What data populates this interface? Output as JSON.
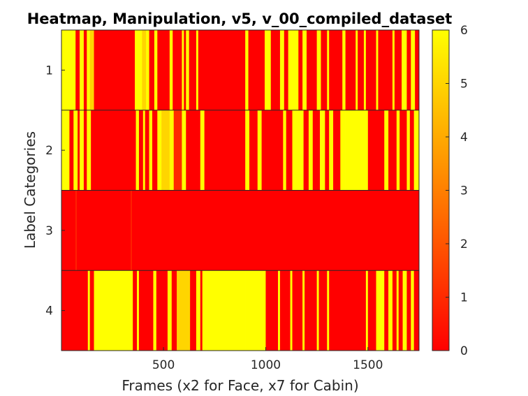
{
  "chart_data": {
    "type": "heatmap",
    "title": "Heatmap, Manipulation, v5, v_00_compiled_dataset",
    "xlabel": "Frames (x2 for Face, x7 for Cabin)",
    "ylabel": "Label Categories",
    "xlim": [
      1,
      1750
    ],
    "xticks": [
      500,
      1000,
      1500
    ],
    "rows": [
      1,
      2,
      3,
      4
    ],
    "colorbar": {
      "range": [
        0,
        6
      ],
      "ticks": [
        0,
        1,
        2,
        3,
        4,
        5,
        6
      ],
      "colormap": "autumn",
      "low_color": "#ff0000",
      "high_color": "#ffff00"
    },
    "segments": [
      [
        [
          1,
          70,
          6
        ],
        [
          70,
          90,
          0
        ],
        [
          90,
          110,
          6
        ],
        [
          110,
          125,
          0
        ],
        [
          125,
          140,
          6
        ],
        [
          140,
          160,
          5
        ],
        [
          160,
          360,
          0
        ],
        [
          360,
          395,
          6
        ],
        [
          395,
          415,
          5
        ],
        [
          415,
          430,
          6
        ],
        [
          430,
          455,
          0
        ],
        [
          455,
          470,
          6
        ],
        [
          470,
          530,
          0
        ],
        [
          530,
          545,
          6
        ],
        [
          545,
          590,
          0
        ],
        [
          590,
          600,
          6
        ],
        [
          600,
          610,
          0
        ],
        [
          610,
          625,
          6
        ],
        [
          625,
          660,
          0
        ],
        [
          660,
          670,
          6
        ],
        [
          670,
          900,
          0
        ],
        [
          900,
          915,
          6
        ],
        [
          915,
          995,
          0
        ],
        [
          995,
          1025,
          6
        ],
        [
          1025,
          1070,
          0
        ],
        [
          1070,
          1090,
          6
        ],
        [
          1090,
          1110,
          0
        ],
        [
          1110,
          1160,
          6
        ],
        [
          1160,
          1180,
          0
        ],
        [
          1180,
          1200,
          6
        ],
        [
          1200,
          1250,
          0
        ],
        [
          1250,
          1270,
          6
        ],
        [
          1270,
          1300,
          0
        ],
        [
          1300,
          1310,
          6
        ],
        [
          1310,
          1375,
          0
        ],
        [
          1375,
          1390,
          6
        ],
        [
          1390,
          1440,
          0
        ],
        [
          1440,
          1450,
          6
        ],
        [
          1450,
          1480,
          0
        ],
        [
          1480,
          1490,
          6
        ],
        [
          1490,
          1540,
          0
        ],
        [
          1540,
          1550,
          6
        ],
        [
          1550,
          1620,
          0
        ],
        [
          1620,
          1630,
          6
        ],
        [
          1630,
          1665,
          0
        ],
        [
          1665,
          1690,
          6
        ],
        [
          1690,
          1710,
          0
        ],
        [
          1710,
          1730,
          6
        ],
        [
          1730,
          1750,
          0
        ]
      ],
      [
        [
          1,
          40,
          6
        ],
        [
          40,
          60,
          0
        ],
        [
          60,
          80,
          6
        ],
        [
          80,
          90,
          0
        ],
        [
          90,
          110,
          6
        ],
        [
          110,
          125,
          0
        ],
        [
          125,
          145,
          6
        ],
        [
          145,
          365,
          0
        ],
        [
          365,
          380,
          6
        ],
        [
          380,
          400,
          0
        ],
        [
          400,
          410,
          6
        ],
        [
          410,
          430,
          0
        ],
        [
          430,
          445,
          6
        ],
        [
          445,
          470,
          0
        ],
        [
          470,
          490,
          6
        ],
        [
          490,
          530,
          5
        ],
        [
          530,
          550,
          6
        ],
        [
          550,
          590,
          1
        ],
        [
          590,
          610,
          6
        ],
        [
          610,
          680,
          0
        ],
        [
          680,
          700,
          6
        ],
        [
          700,
          900,
          0
        ],
        [
          900,
          920,
          6
        ],
        [
          920,
          960,
          0
        ],
        [
          960,
          980,
          6
        ],
        [
          980,
          1085,
          0
        ],
        [
          1085,
          1100,
          6
        ],
        [
          1100,
          1130,
          0
        ],
        [
          1130,
          1185,
          6
        ],
        [
          1185,
          1210,
          0
        ],
        [
          1210,
          1230,
          6
        ],
        [
          1230,
          1265,
          0
        ],
        [
          1265,
          1290,
          6
        ],
        [
          1290,
          1310,
          0
        ],
        [
          1310,
          1330,
          6
        ],
        [
          1330,
          1365,
          0
        ],
        [
          1365,
          1390,
          6
        ],
        [
          1390,
          1500,
          6
        ],
        [
          1500,
          1580,
          0
        ],
        [
          1580,
          1600,
          6
        ],
        [
          1600,
          1640,
          0
        ],
        [
          1640,
          1655,
          6
        ],
        [
          1655,
          1690,
          0
        ],
        [
          1690,
          1705,
          6
        ],
        [
          1705,
          1725,
          0
        ],
        [
          1725,
          1750,
          6
        ]
      ],
      [
        [
          1,
          70,
          0
        ],
        [
          70,
          75,
          1
        ],
        [
          75,
          340,
          0
        ],
        [
          340,
          345,
          1
        ],
        [
          345,
          1750,
          0
        ]
      ],
      [
        [
          1,
          130,
          0
        ],
        [
          130,
          140,
          6
        ],
        [
          140,
          160,
          0
        ],
        [
          160,
          350,
          6
        ],
        [
          350,
          370,
          0
        ],
        [
          370,
          380,
          6
        ],
        [
          380,
          450,
          0
        ],
        [
          450,
          465,
          6
        ],
        [
          465,
          520,
          0
        ],
        [
          520,
          540,
          6
        ],
        [
          540,
          565,
          0
        ],
        [
          565,
          630,
          5
        ],
        [
          630,
          660,
          0
        ],
        [
          660,
          680,
          6
        ],
        [
          680,
          690,
          0
        ],
        [
          690,
          900,
          6
        ],
        [
          900,
          1000,
          6
        ],
        [
          1000,
          1060,
          0
        ],
        [
          1060,
          1070,
          6
        ],
        [
          1070,
          1120,
          0
        ],
        [
          1120,
          1130,
          6
        ],
        [
          1130,
          1180,
          0
        ],
        [
          1180,
          1190,
          6
        ],
        [
          1190,
          1250,
          0
        ],
        [
          1250,
          1260,
          6
        ],
        [
          1260,
          1300,
          0
        ],
        [
          1300,
          1310,
          6
        ],
        [
          1310,
          1490,
          0
        ],
        [
          1490,
          1500,
          6
        ],
        [
          1500,
          1540,
          0
        ],
        [
          1540,
          1580,
          6
        ],
        [
          1580,
          1600,
          0
        ],
        [
          1600,
          1620,
          6
        ],
        [
          1620,
          1640,
          0
        ],
        [
          1640,
          1650,
          6
        ],
        [
          1650,
          1670,
          0
        ],
        [
          1670,
          1690,
          6
        ],
        [
          1690,
          1710,
          0
        ],
        [
          1710,
          1725,
          6
        ],
        [
          1725,
          1750,
          0
        ]
      ]
    ]
  }
}
